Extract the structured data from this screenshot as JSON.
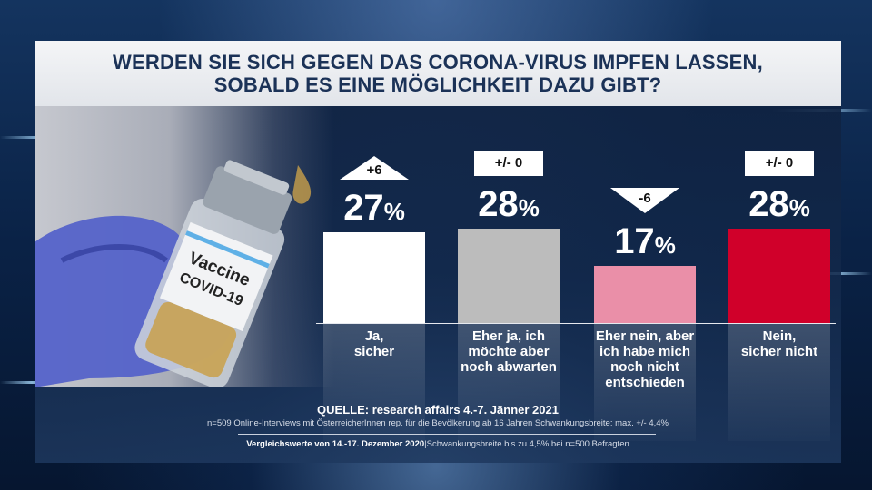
{
  "title_line1": "WERDEN SIE SICH GEGEN DAS CORONA-VIRUS IMPFEN LASSEN,",
  "title_line2": "SOBALD ES EINE MÖGLICHKEIT DAZU GIBT?",
  "photo_label_1": "Vaccine",
  "photo_label_2": "COVID-19",
  "colors": {
    "title": "#1b3257",
    "panel": "#132a4e",
    "bar_ja": "#ffffff",
    "bar_eher_ja": "#bcbcbc",
    "bar_eher_nein": "#ea8fa8",
    "bar_nein": "#d0002a"
  },
  "chart_data": {
    "type": "bar",
    "categories": [
      "Ja, sicher",
      "Eher ja, ich möchte aber noch abwarten",
      "Eher nein, aber ich habe mich noch nicht entschieden",
      "Nein, sicher nicht"
    ],
    "category_lines": [
      [
        "Ja,",
        "sicher"
      ],
      [
        "Eher ja, ich",
        "möchte aber",
        "noch abwarten"
      ],
      [
        "Eher nein, aber",
        "ich habe mich",
        "noch nicht",
        "entschieden"
      ],
      [
        "Nein,",
        "sicher nicht"
      ]
    ],
    "values": [
      27,
      28,
      17,
      28
    ],
    "value_labels": [
      "27",
      "28",
      "17",
      "28"
    ],
    "unit": "%",
    "changes": [
      "+6",
      "+/- 0",
      "-6",
      "+/- 0"
    ],
    "change_direction": [
      "up",
      "none",
      "down",
      "none"
    ],
    "ylim": [
      0,
      28
    ]
  },
  "source": "QUELLE: research affairs 4.-7. Jänner 2021",
  "note": "n=509 Online-Interviews mit ÖsterreicherInnen rep. für die Bevölkerung ab 16 Jahren  Schwankungsbreite: max. +/- 4,4%",
  "compare_bold": "Vergleichswerte von 14.-17. Dezember 2020",
  "compare_rest": "|Schwankungsbreite bis zu 4,5% bei n=500 Befragten"
}
